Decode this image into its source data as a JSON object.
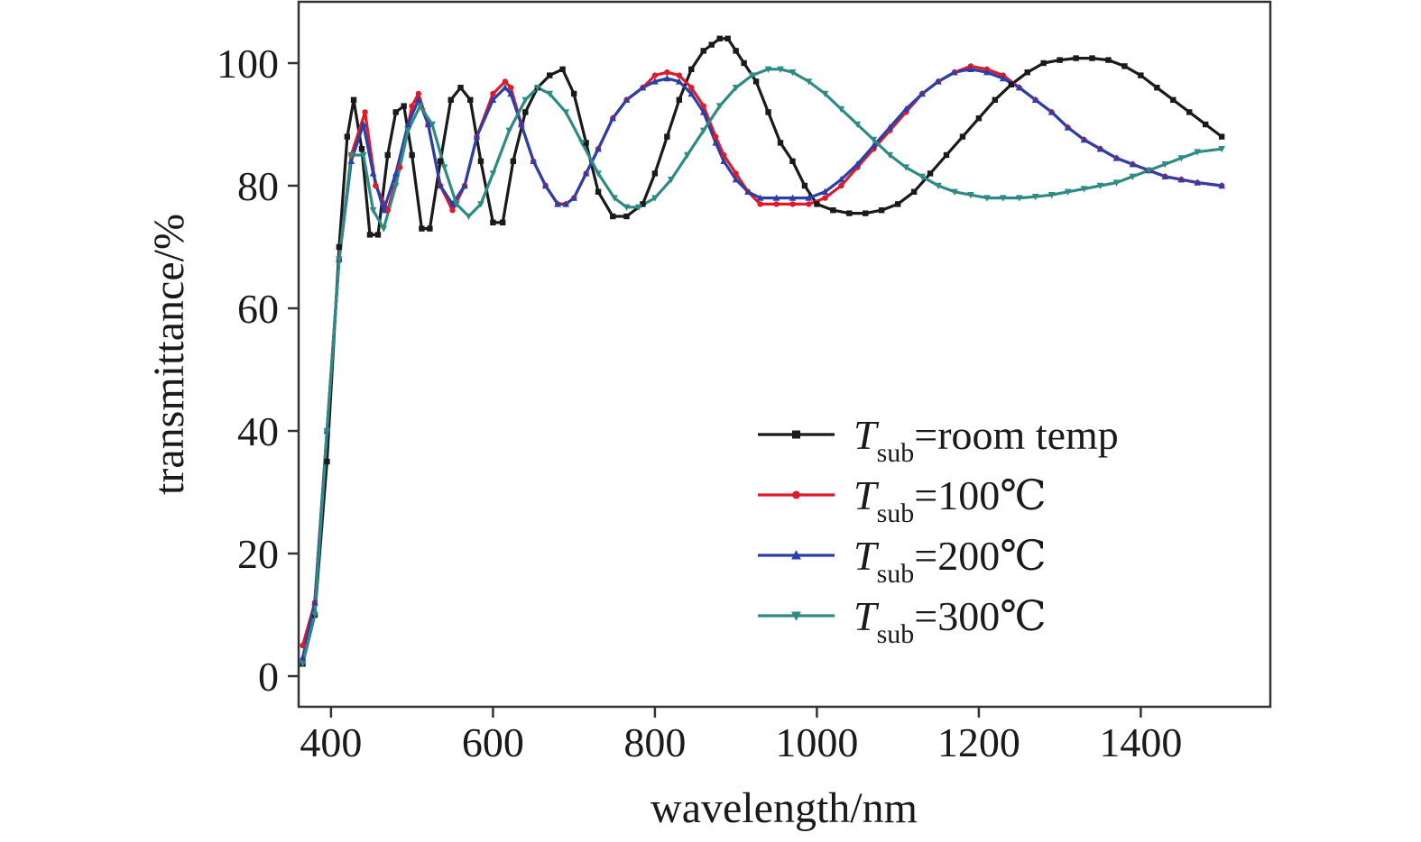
{
  "chart_data": {
    "type": "line",
    "xlabel": "wavelength/nm",
    "ylabel": "transmittance/%",
    "xlim": [
      360,
      1560
    ],
    "ylim": [
      -5,
      110
    ],
    "xticks": [
      400,
      600,
      800,
      1000,
      1200,
      1400
    ],
    "yticks": [
      0,
      20,
      40,
      60,
      80,
      100
    ],
    "grid": false,
    "legend_position": "lower-right",
    "series": [
      {
        "legend_var": "T",
        "legend_sub": "sub",
        "legend_rest": "=room temp",
        "color": "#1a1a1a",
        "marker": "square",
        "x": [
          365,
          380,
          395,
          410,
          420,
          428,
          438,
          448,
          458,
          470,
          480,
          490,
          500,
          512,
          522,
          535,
          548,
          560,
          572,
          585,
          600,
          612,
          625,
          640,
          655,
          670,
          686,
          700,
          715,
          730,
          748,
          765,
          785,
          800,
          815,
          830,
          845,
          860,
          870,
          880,
          890,
          900,
          910,
          925,
          940,
          955,
          970,
          985,
          1000,
          1020,
          1040,
          1060,
          1080,
          1100,
          1120,
          1140,
          1160,
          1180,
          1200,
          1220,
          1240,
          1260,
          1280,
          1300,
          1320,
          1340,
          1360,
          1380,
          1400,
          1420,
          1440,
          1460,
          1480,
          1500
        ],
        "y": [
          2,
          10,
          35,
          70,
          88,
          94,
          86,
          72,
          72,
          85,
          92,
          93,
          85,
          73,
          73,
          84,
          94,
          96,
          94,
          84,
          74,
          74,
          84,
          92,
          96,
          98,
          99,
          95,
          87,
          79,
          75,
          75,
          77,
          82,
          88,
          94,
          99,
          102,
          103,
          104,
          104,
          102,
          100,
          97,
          92,
          87,
          84,
          80,
          77,
          76,
          75.5,
          75.5,
          76,
          77,
          79,
          82,
          85,
          88,
          91,
          94,
          96.5,
          98.5,
          100,
          100.5,
          100.8,
          100.8,
          100.5,
          99.5,
          98,
          96,
          94,
          92,
          90,
          88
        ]
      },
      {
        "legend_var": "T",
        "legend_sub": "sub",
        "legend_rest": "=100℃",
        "color": "#e01a2a",
        "marker": "circle",
        "x": [
          365,
          380,
          395,
          410,
          425,
          442,
          455,
          470,
          485,
          500,
          508,
          520,
          535,
          550,
          565,
          580,
          600,
          615,
          622,
          635,
          650,
          665,
          680,
          690,
          700,
          715,
          730,
          748,
          765,
          785,
          800,
          815,
          830,
          845,
          860,
          875,
          885,
          900,
          915,
          930,
          950,
          970,
          990,
          1010,
          1030,
          1050,
          1070,
          1090,
          1110,
          1130,
          1150,
          1170,
          1190,
          1210,
          1230,
          1250,
          1270,
          1290,
          1310,
          1330,
          1350,
          1370,
          1390,
          1410,
          1430,
          1450,
          1470,
          1500
        ],
        "y": [
          5,
          12,
          40,
          68,
          85,
          92,
          80,
          76,
          83,
          93,
          95,
          90,
          80,
          76,
          80,
          88,
          95,
          97,
          96,
          90,
          84,
          80,
          77,
          77,
          78,
          82,
          86,
          91,
          94,
          96,
          98,
          98.5,
          98,
          96,
          93,
          88,
          85,
          82,
          79,
          77,
          77,
          77,
          77,
          78,
          80,
          83,
          86,
          89,
          92,
          95,
          97,
          98.5,
          99.5,
          99,
          98,
          96,
          94,
          92,
          89.5,
          87.5,
          86,
          84.5,
          83.5,
          82.5,
          81.5,
          81,
          80.5,
          80
        ]
      },
      {
        "legend_var": "T",
        "legend_sub": "sub",
        "legend_rest": "=200℃",
        "color": "#2a3fa8",
        "marker": "triangle-up",
        "x": [
          365,
          380,
          395,
          410,
          425,
          440,
          452,
          465,
          480,
          495,
          508,
          520,
          535,
          550,
          565,
          580,
          600,
          615,
          622,
          635,
          650,
          665,
          680,
          690,
          700,
          715,
          730,
          748,
          765,
          785,
          800,
          815,
          830,
          845,
          860,
          875,
          885,
          900,
          915,
          930,
          950,
          970,
          990,
          1010,
          1030,
          1050,
          1070,
          1090,
          1110,
          1130,
          1150,
          1170,
          1190,
          1210,
          1230,
          1250,
          1270,
          1290,
          1310,
          1330,
          1350,
          1370,
          1390,
          1410,
          1430,
          1450,
          1470,
          1500
        ],
        "y": [
          3,
          12,
          40,
          68,
          84,
          90,
          82,
          76,
          82,
          90,
          94,
          90,
          80,
          77,
          80,
          88,
          94,
          96,
          95,
          90,
          84,
          80,
          77,
          77,
          78,
          82,
          86,
          91,
          94,
          96,
          97,
          97.5,
          97,
          95,
          92,
          87,
          84,
          81,
          79,
          78,
          78,
          78,
          78,
          79,
          81,
          83.5,
          86.5,
          89.5,
          92.5,
          95,
          97,
          98.5,
          99,
          98.5,
          97.5,
          96,
          94,
          92,
          89.5,
          87.5,
          86,
          84.5,
          83.5,
          82.5,
          81.5,
          81,
          80.5,
          80
        ]
      },
      {
        "legend_var": "T",
        "legend_sub": "sub",
        "legend_rest": "=300℃",
        "color": "#2e8b84",
        "marker": "triangle-down",
        "x": [
          365,
          380,
          395,
          410,
          425,
          440,
          452,
          465,
          480,
          495,
          510,
          525,
          540,
          555,
          570,
          585,
          600,
          620,
          640,
          655,
          670,
          690,
          710,
          730,
          750,
          765,
          780,
          800,
          820,
          840,
          860,
          880,
          900,
          920,
          940,
          955,
          970,
          990,
          1010,
          1030,
          1050,
          1070,
          1090,
          1110,
          1130,
          1150,
          1170,
          1190,
          1210,
          1230,
          1250,
          1270,
          1290,
          1310,
          1330,
          1350,
          1370,
          1390,
          1410,
          1430,
          1450,
          1470,
          1500
        ],
        "y": [
          2,
          10,
          40,
          68,
          85,
          85,
          76,
          73,
          80,
          89,
          93,
          90,
          83,
          77,
          75,
          77,
          82,
          89,
          94,
          96,
          95,
          92,
          87,
          82,
          78,
          76.5,
          76.5,
          78,
          81,
          85,
          89,
          93,
          96,
          98,
          99,
          99,
          98.5,
          97,
          95,
          92.5,
          90,
          87.5,
          85,
          83,
          81.5,
          80,
          79,
          78.5,
          78,
          78,
          78,
          78.2,
          78.5,
          79,
          79.5,
          80,
          80.5,
          81.5,
          82.5,
          83.5,
          84.5,
          85.5,
          86
        ]
      }
    ]
  }
}
